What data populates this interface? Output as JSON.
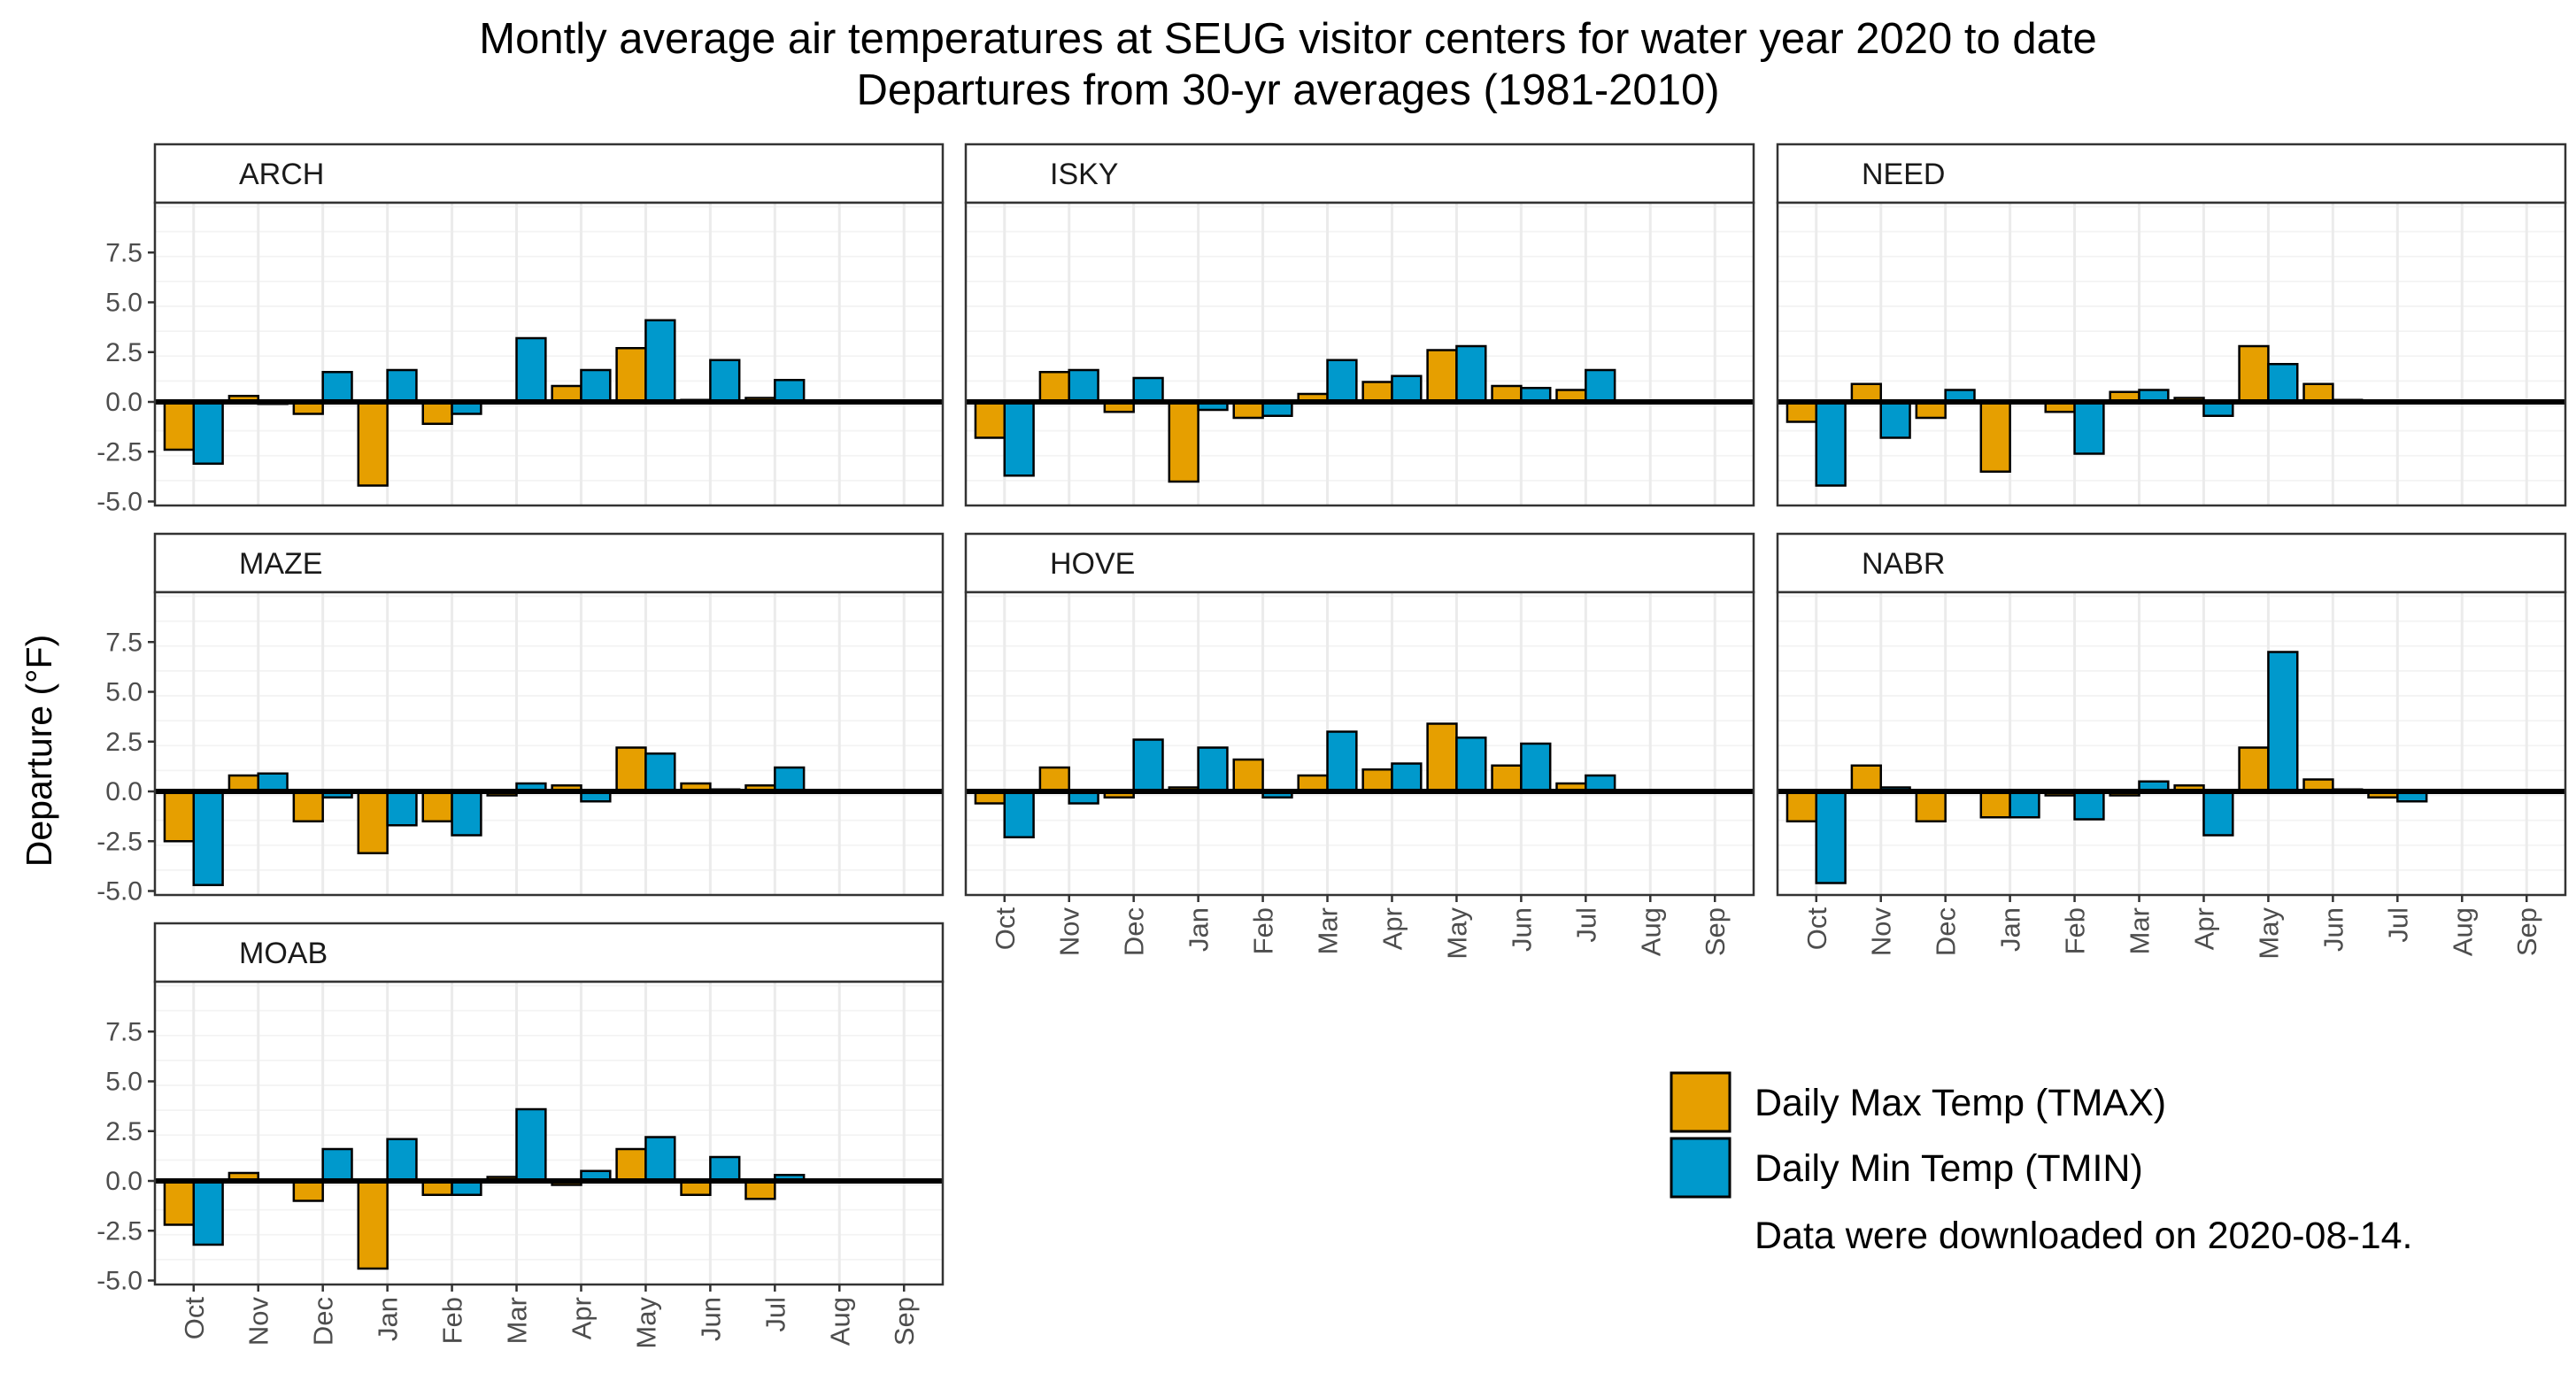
{
  "chart_data": {
    "type": "bar",
    "title": "Montly average air temperatures at SEUG visitor centers for water year 2020 to date",
    "subtitle": "Departures from 30-yr averages (1981-2010)",
    "ylabel": "Departure (°F)",
    "xlabel": "",
    "ylim": [
      -5.2,
      10
    ],
    "yticks": [
      -5,
      -2.5,
      0,
      2.5,
      5,
      7.5
    ],
    "ytick_labels": [
      "-5.0",
      "-2.5",
      "0.0",
      "2.5",
      "5.0",
      "7.5"
    ],
    "grid": true,
    "legend_position": "bottom-right",
    "categories": [
      "Oct",
      "Nov",
      "Dec",
      "Jan",
      "Feb",
      "Mar",
      "Apr",
      "May",
      "Jun",
      "Jul",
      "Aug",
      "Sep"
    ],
    "series_names": [
      "Daily Max Temp (TMAX)",
      "Daily Min Temp (TMIN)"
    ],
    "series_colors": [
      "#E69F00",
      "#0099CC"
    ],
    "note": "Data were downloaded on 2020-08-14.",
    "panels": [
      {
        "station": "ARCH",
        "TMAX": [
          -2.4,
          0.3,
          -0.6,
          -4.2,
          -1.1,
          0.0,
          0.8,
          2.7,
          0.1,
          0.2,
          null,
          null
        ],
        "TMIN": [
          -3.1,
          -0.1,
          1.5,
          1.6,
          -0.6,
          3.2,
          1.6,
          4.1,
          2.1,
          1.1,
          null,
          null
        ]
      },
      {
        "station": "ISKY",
        "TMAX": [
          -1.8,
          1.5,
          -0.5,
          -4.0,
          -0.8,
          0.4,
          1.0,
          2.6,
          0.8,
          0.6,
          null,
          null
        ],
        "TMIN": [
          -3.7,
          1.6,
          1.2,
          -0.4,
          -0.7,
          2.1,
          1.3,
          2.8,
          0.7,
          1.6,
          null,
          null
        ]
      },
      {
        "station": "NEED",
        "TMAX": [
          -1.0,
          0.9,
          -0.8,
          -3.5,
          -0.5,
          0.5,
          0.2,
          2.8,
          0.9,
          null,
          null,
          null
        ],
        "TMIN": [
          -4.2,
          -1.8,
          0.6,
          0.0,
          -2.6,
          0.6,
          -0.7,
          1.9,
          0.1,
          null,
          null,
          null
        ]
      },
      {
        "station": "MAZE",
        "TMAX": [
          -2.5,
          0.8,
          -1.5,
          -3.1,
          -1.5,
          -0.2,
          0.3,
          2.2,
          0.4,
          0.3,
          null,
          null
        ],
        "TMIN": [
          -4.7,
          0.9,
          -0.3,
          -1.7,
          -2.2,
          0.4,
          -0.5,
          1.9,
          0.1,
          1.2,
          null,
          null
        ]
      },
      {
        "station": "HOVE",
        "TMAX": [
          -0.6,
          1.2,
          -0.3,
          0.2,
          1.6,
          0.8,
          1.1,
          3.4,
          1.3,
          0.4,
          null,
          null
        ],
        "TMIN": [
          -2.3,
          -0.6,
          2.6,
          2.2,
          -0.3,
          3.0,
          1.4,
          2.7,
          2.4,
          0.8,
          null,
          null
        ]
      },
      {
        "station": "NABR",
        "TMAX": [
          -1.5,
          1.3,
          -1.5,
          -1.3,
          -0.2,
          -0.2,
          0.3,
          2.2,
          0.6,
          -0.3,
          null,
          null
        ],
        "TMIN": [
          -4.6,
          0.2,
          0.0,
          -1.3,
          -1.4,
          0.5,
          -2.2,
          7.0,
          0.1,
          -0.5,
          null,
          null
        ]
      },
      {
        "station": "MOAB",
        "TMAX": [
          -2.2,
          0.4,
          -1.0,
          -4.4,
          -0.7,
          0.2,
          -0.2,
          1.6,
          -0.7,
          -0.9,
          null,
          null
        ],
        "TMIN": [
          -3.2,
          0.0,
          1.6,
          2.1,
          -0.7,
          3.6,
          0.5,
          2.2,
          1.2,
          0.3,
          null,
          null
        ]
      }
    ]
  }
}
